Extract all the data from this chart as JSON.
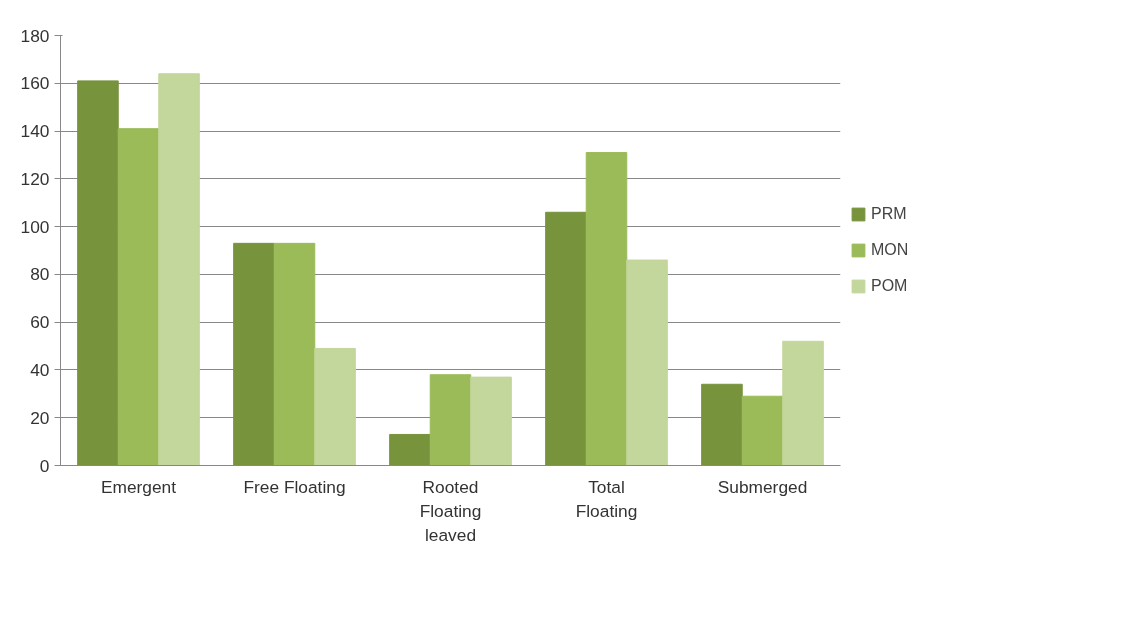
{
  "chart_data": {
    "type": "bar",
    "categories": [
      "Emergent",
      "Free Floating",
      "Rooted\nFloating\nleaved",
      "Total\nFloating",
      "Submerged"
    ],
    "series": [
      {
        "name": "PRM",
        "color": "#77933c",
        "values": [
          161,
          93,
          13,
          106,
          34
        ]
      },
      {
        "name": "MON",
        "color": "#9bbb59",
        "values": [
          141,
          93,
          38,
          131,
          29
        ]
      },
      {
        "name": "POM",
        "color": "#c3d69b",
        "values": [
          164,
          49,
          37,
          86,
          52
        ]
      }
    ],
    "ylim": [
      0,
      180
    ],
    "yticks": [
      0,
      20,
      40,
      60,
      80,
      100,
      120,
      140,
      160,
      180
    ],
    "grid": "y",
    "legend": "right"
  }
}
